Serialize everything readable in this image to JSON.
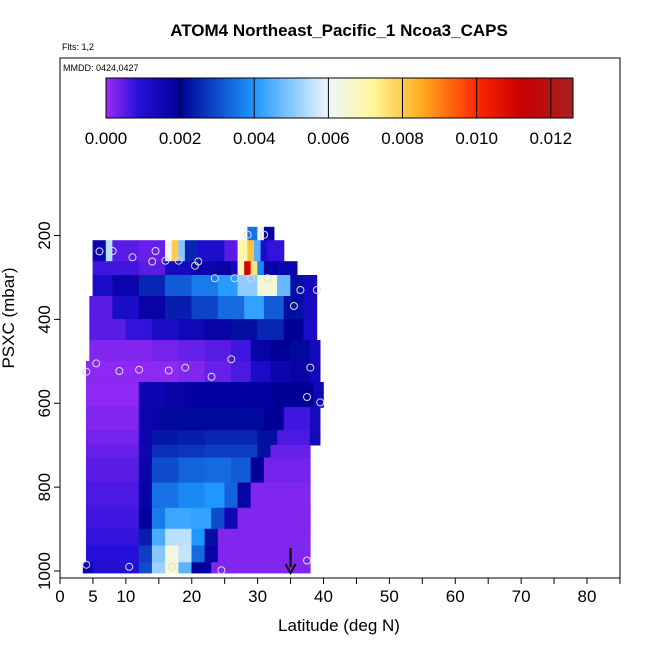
{
  "chart_data": {
    "type": "heatmap",
    "title": "ATOM4 Northeast_Pacific_1 Ncoa3_CAPS",
    "flights_label": "Flts: 1,2",
    "dates_label": "MMDD: 0424,0427",
    "xlabel": "Latitude (deg N)",
    "ylabel": "PSXC (mbar)",
    "xlim": [
      0,
      85
    ],
    "ylim": [
      1020,
      0
    ],
    "x_ticks": [
      0,
      5,
      10,
      20,
      30,
      40,
      50,
      60,
      70,
      80
    ],
    "x_minor_ticks": [
      15,
      25,
      35,
      45,
      55,
      65,
      75,
      85
    ],
    "y_ticks": [
      200,
      400,
      600,
      800,
      1000
    ],
    "colorbar": {
      "range": [
        0,
        0.0126
      ],
      "ticks": [
        "0.000",
        "0.002",
        "0.004",
        "0.006",
        "0.008",
        "0.010",
        "0.012"
      ],
      "tick_values": [
        0,
        0.002,
        0.004,
        0.006,
        0.008,
        0.01,
        0.012
      ],
      "color_stops": [
        {
          "v": 0.0,
          "c": "#9a2cf6"
        },
        {
          "v": 0.0009,
          "c": "#2410d8"
        },
        {
          "v": 0.002,
          "c": "#000099"
        },
        {
          "v": 0.004,
          "c": "#1e98ff"
        },
        {
          "v": 0.006,
          "c": "#eef6ff"
        },
        {
          "v": 0.0072,
          "c": "#fff79a"
        },
        {
          "v": 0.0085,
          "c": "#ffad1e"
        },
        {
          "v": 0.01,
          "c": "#ff2800"
        },
        {
          "v": 0.0112,
          "c": "#c80000"
        },
        {
          "v": 0.0126,
          "c": "#a82020"
        }
      ]
    },
    "rows": [
      {
        "p_top": 180,
        "p_bot": 212,
        "segments": [
          [
            28.5,
            30,
            0.0035
          ],
          [
            30,
            31,
            0.0063
          ],
          [
            31,
            32.5,
            0.0018
          ]
        ]
      },
      {
        "p_top": 212,
        "p_bot": 262,
        "segments": [
          [
            5,
            7,
            0.0016
          ],
          [
            7,
            8,
            0.0055
          ],
          [
            8,
            12,
            0.0005
          ],
          [
            12,
            16,
            0.0004
          ],
          [
            16,
            17,
            0.006
          ],
          [
            17,
            18,
            0.008
          ],
          [
            18,
            19,
            0.005
          ],
          [
            19,
            21,
            0.0025
          ],
          [
            21,
            25,
            0.0011
          ],
          [
            25,
            27,
            0.0005
          ],
          [
            27,
            28.5,
            0.007
          ],
          [
            28.5,
            29.5,
            0.0081
          ],
          [
            29.5,
            30.5,
            0.0045
          ],
          [
            30.5,
            31.5,
            0.0012
          ],
          [
            31.5,
            34,
            0.0008
          ]
        ]
      },
      {
        "p_top": 262,
        "p_bot": 295,
        "segments": [
          [
            5,
            12,
            0.0007
          ],
          [
            12,
            16,
            0.0005
          ],
          [
            16,
            20,
            0.0013
          ],
          [
            20,
            24,
            0.0017
          ],
          [
            24,
            26,
            0.0018
          ],
          [
            26,
            27,
            0.0014
          ],
          [
            27,
            28,
            0.0068
          ],
          [
            28,
            29,
            0.011
          ],
          [
            29,
            30,
            0.0075
          ],
          [
            30,
            31,
            0.0038
          ],
          [
            31,
            33,
            0.0018
          ],
          [
            33,
            36,
            0.0016
          ]
        ]
      },
      {
        "p_top": 295,
        "p_bot": 345,
        "segments": [
          [
            5,
            8,
            0.0012
          ],
          [
            8,
            12,
            0.0017
          ],
          [
            12,
            16,
            0.0025
          ],
          [
            16,
            20,
            0.0032
          ],
          [
            20,
            24,
            0.0036
          ],
          [
            24,
            27,
            0.0041
          ],
          [
            27,
            30,
            0.0051
          ],
          [
            30,
            33,
            0.0065
          ],
          [
            33,
            35,
            0.0047
          ],
          [
            35,
            37,
            0.0022
          ],
          [
            37,
            39,
            0.0014
          ]
        ]
      },
      {
        "p_top": 345,
        "p_bot": 400,
        "segments": [
          [
            4.5,
            8,
            0.0005
          ],
          [
            8,
            12,
            0.0012
          ],
          [
            12,
            16,
            0.0018
          ],
          [
            16,
            20,
            0.0024
          ],
          [
            20,
            24,
            0.0029
          ],
          [
            24,
            28,
            0.0034
          ],
          [
            28,
            31,
            0.0042
          ],
          [
            31,
            34,
            0.0032
          ],
          [
            34,
            37,
            0.0022
          ],
          [
            37,
            39,
            0.0013
          ]
        ]
      },
      {
        "p_top": 400,
        "p_bot": 450,
        "segments": [
          [
            4.5,
            10,
            0.0005
          ],
          [
            10,
            14,
            0.0008
          ],
          [
            14,
            18,
            0.0012
          ],
          [
            18,
            22,
            0.0015
          ],
          [
            22,
            26,
            0.0018
          ],
          [
            26,
            30,
            0.0022
          ],
          [
            30,
            34,
            0.0025
          ],
          [
            34,
            37,
            0.002
          ],
          [
            37,
            39,
            0.0012
          ]
        ]
      },
      {
        "p_top": 450,
        "p_bot": 500,
        "segments": [
          [
            4.5,
            14,
            0.0002
          ],
          [
            14,
            18,
            0.0003
          ],
          [
            18,
            22,
            0.0004
          ],
          [
            22,
            26,
            0.0005
          ],
          [
            26,
            29,
            0.0007
          ],
          [
            29,
            32,
            0.0018
          ],
          [
            32,
            35,
            0.002
          ],
          [
            35,
            38,
            0.0021
          ],
          [
            38,
            39.5,
            0.0014
          ]
        ]
      },
      {
        "p_top": 500,
        "p_bot": 550,
        "segments": [
          [
            4,
            14,
            0.0001
          ],
          [
            14,
            18,
            0.0001
          ],
          [
            18,
            22,
            0.0002
          ],
          [
            22,
            26,
            0.0004
          ],
          [
            26,
            29,
            0.0006
          ],
          [
            29,
            32,
            0.0012
          ],
          [
            32,
            35,
            0.0016
          ],
          [
            35,
            38,
            0.0018
          ],
          [
            38,
            39.5,
            0.0014
          ]
        ]
      },
      {
        "p_top": 550,
        "p_bot": 610,
        "segments": [
          [
            4,
            12,
            0.0001
          ],
          [
            12,
            16,
            0.0016
          ],
          [
            16,
            20,
            0.0018
          ],
          [
            20,
            24,
            0.0019
          ],
          [
            24,
            28,
            0.0019
          ],
          [
            28,
            32,
            0.0019
          ],
          [
            32,
            36,
            0.002
          ],
          [
            36,
            38.5,
            0.002
          ],
          [
            38.5,
            40,
            0.0015
          ]
        ]
      },
      {
        "p_top": 610,
        "p_bot": 665,
        "segments": [
          [
            4,
            12,
            0.0002
          ],
          [
            12,
            15,
            0.0017
          ],
          [
            15,
            20,
            0.0021
          ],
          [
            20,
            24,
            0.0021
          ],
          [
            24,
            28,
            0.0021
          ],
          [
            28,
            31,
            0.0021
          ],
          [
            31,
            34,
            0.002
          ],
          [
            34,
            38,
            0.0007
          ],
          [
            38,
            39.5,
            0.0013
          ]
        ]
      },
      {
        "p_top": 665,
        "p_bot": 700,
        "segments": [
          [
            4,
            12,
            0.0003
          ],
          [
            12,
            14,
            0.0016
          ],
          [
            14,
            18,
            0.0023
          ],
          [
            18,
            22,
            0.0024
          ],
          [
            22,
            26,
            0.0025
          ],
          [
            26,
            30,
            0.0025
          ],
          [
            30,
            33,
            0.0022
          ],
          [
            33,
            38,
            0.0006
          ],
          [
            38,
            39.5,
            0.0014
          ]
        ]
      },
      {
        "p_top": 700,
        "p_bot": 730,
        "segments": [
          [
            4,
            12,
            0.0004
          ],
          [
            12,
            14,
            0.0016
          ],
          [
            14,
            18,
            0.0026
          ],
          [
            18,
            22,
            0.0027
          ],
          [
            22,
            26,
            0.0028
          ],
          [
            26,
            30,
            0.0028
          ],
          [
            30,
            32,
            0.0022
          ],
          [
            32,
            38,
            0.0004
          ]
        ]
      },
      {
        "p_top": 730,
        "p_bot": 790,
        "segments": [
          [
            4,
            12,
            0.0005
          ],
          [
            12,
            14,
            0.0017
          ],
          [
            14,
            18,
            0.003
          ],
          [
            18,
            22,
            0.0033
          ],
          [
            22,
            26,
            0.0034
          ],
          [
            26,
            29,
            0.0032
          ],
          [
            29,
            31,
            0.002
          ],
          [
            31,
            38,
            0.0003
          ]
        ]
      },
      {
        "p_top": 790,
        "p_bot": 850,
        "segments": [
          [
            4,
            12,
            0.0006
          ],
          [
            12,
            14,
            0.0018
          ],
          [
            14,
            18,
            0.0035
          ],
          [
            18,
            22,
            0.0038
          ],
          [
            22,
            25,
            0.004
          ],
          [
            25,
            27,
            0.0033
          ],
          [
            27,
            29,
            0.0018
          ],
          [
            29,
            38,
            0.0002
          ]
        ]
      },
      {
        "p_top": 850,
        "p_bot": 900,
        "segments": [
          [
            4,
            12,
            0.0007
          ],
          [
            12,
            14,
            0.002
          ],
          [
            14,
            16,
            0.0036
          ],
          [
            16,
            20,
            0.0043
          ],
          [
            20,
            23,
            0.0042
          ],
          [
            23,
            25,
            0.003
          ],
          [
            25,
            27,
            0.0015
          ],
          [
            27,
            38,
            0.0002
          ]
        ]
      },
      {
        "p_top": 900,
        "p_bot": 940,
        "segments": [
          [
            4,
            12,
            0.0008
          ],
          [
            12,
            14,
            0.0024
          ],
          [
            14,
            16,
            0.0044
          ],
          [
            16,
            20,
            0.0055
          ],
          [
            20,
            22,
            0.004
          ],
          [
            22,
            24,
            0.0022
          ],
          [
            24,
            38,
            0.0002
          ]
        ]
      },
      {
        "p_top": 940,
        "p_bot": 980,
        "segments": [
          [
            4,
            12,
            0.0009
          ],
          [
            12,
            14,
            0.0028
          ],
          [
            14,
            16,
            0.005
          ],
          [
            16,
            18,
            0.0064
          ],
          [
            18,
            20,
            0.0056
          ],
          [
            20,
            22,
            0.0034
          ],
          [
            22,
            24,
            0.0018
          ],
          [
            24,
            38,
            0.0002
          ]
        ]
      },
      {
        "p_top": 980,
        "p_bot": 1005,
        "segments": [
          [
            3.5,
            5,
            0.0017
          ],
          [
            5,
            12,
            0.001
          ],
          [
            12,
            14,
            0.003
          ],
          [
            14,
            16,
            0.0052
          ],
          [
            16,
            18,
            0.0066
          ],
          [
            18,
            20,
            0.0046
          ],
          [
            20,
            23,
            0.002
          ],
          [
            23,
            38,
            0.0002
          ]
        ]
      }
    ],
    "sample_points": [
      {
        "x": 28.5,
        "y": 198
      },
      {
        "x": 31.0,
        "y": 198
      },
      {
        "x": 6.0,
        "y": 238
      },
      {
        "x": 8.0,
        "y": 237
      },
      {
        "x": 14.5,
        "y": 237
      },
      {
        "x": 11.0,
        "y": 252
      },
      {
        "x": 14.0,
        "y": 262
      },
      {
        "x": 16.0,
        "y": 260
      },
      {
        "x": 18.0,
        "y": 260
      },
      {
        "x": 21.0,
        "y": 262
      },
      {
        "x": 20.5,
        "y": 272
      },
      {
        "x": 23.5,
        "y": 302
      },
      {
        "x": 26.5,
        "y": 302
      },
      {
        "x": 29.0,
        "y": 302
      },
      {
        "x": 31.5,
        "y": 302
      },
      {
        "x": 36.5,
        "y": 330
      },
      {
        "x": 39.0,
        "y": 330
      },
      {
        "x": 35.5,
        "y": 368
      },
      {
        "x": 5.5,
        "y": 505
      },
      {
        "x": 4.0,
        "y": 525
      },
      {
        "x": 9.0,
        "y": 523
      },
      {
        "x": 12.0,
        "y": 520
      },
      {
        "x": 16.5,
        "y": 522
      },
      {
        "x": 19.0,
        "y": 515
      },
      {
        "x": 23.0,
        "y": 537
      },
      {
        "x": 26.0,
        "y": 495
      },
      {
        "x": 38.0,
        "y": 515
      },
      {
        "x": 37.5,
        "y": 585
      },
      {
        "x": 39.5,
        "y": 598
      },
      {
        "x": 4.0,
        "y": 985
      },
      {
        "x": 10.5,
        "y": 990
      },
      {
        "x": 17.0,
        "y": 990
      },
      {
        "x": 24.5,
        "y": 998
      },
      {
        "x": 37.5,
        "y": 975
      }
    ],
    "marker_arrow": {
      "x": 35,
      "y_start": 945,
      "y_end": 1005
    }
  }
}
